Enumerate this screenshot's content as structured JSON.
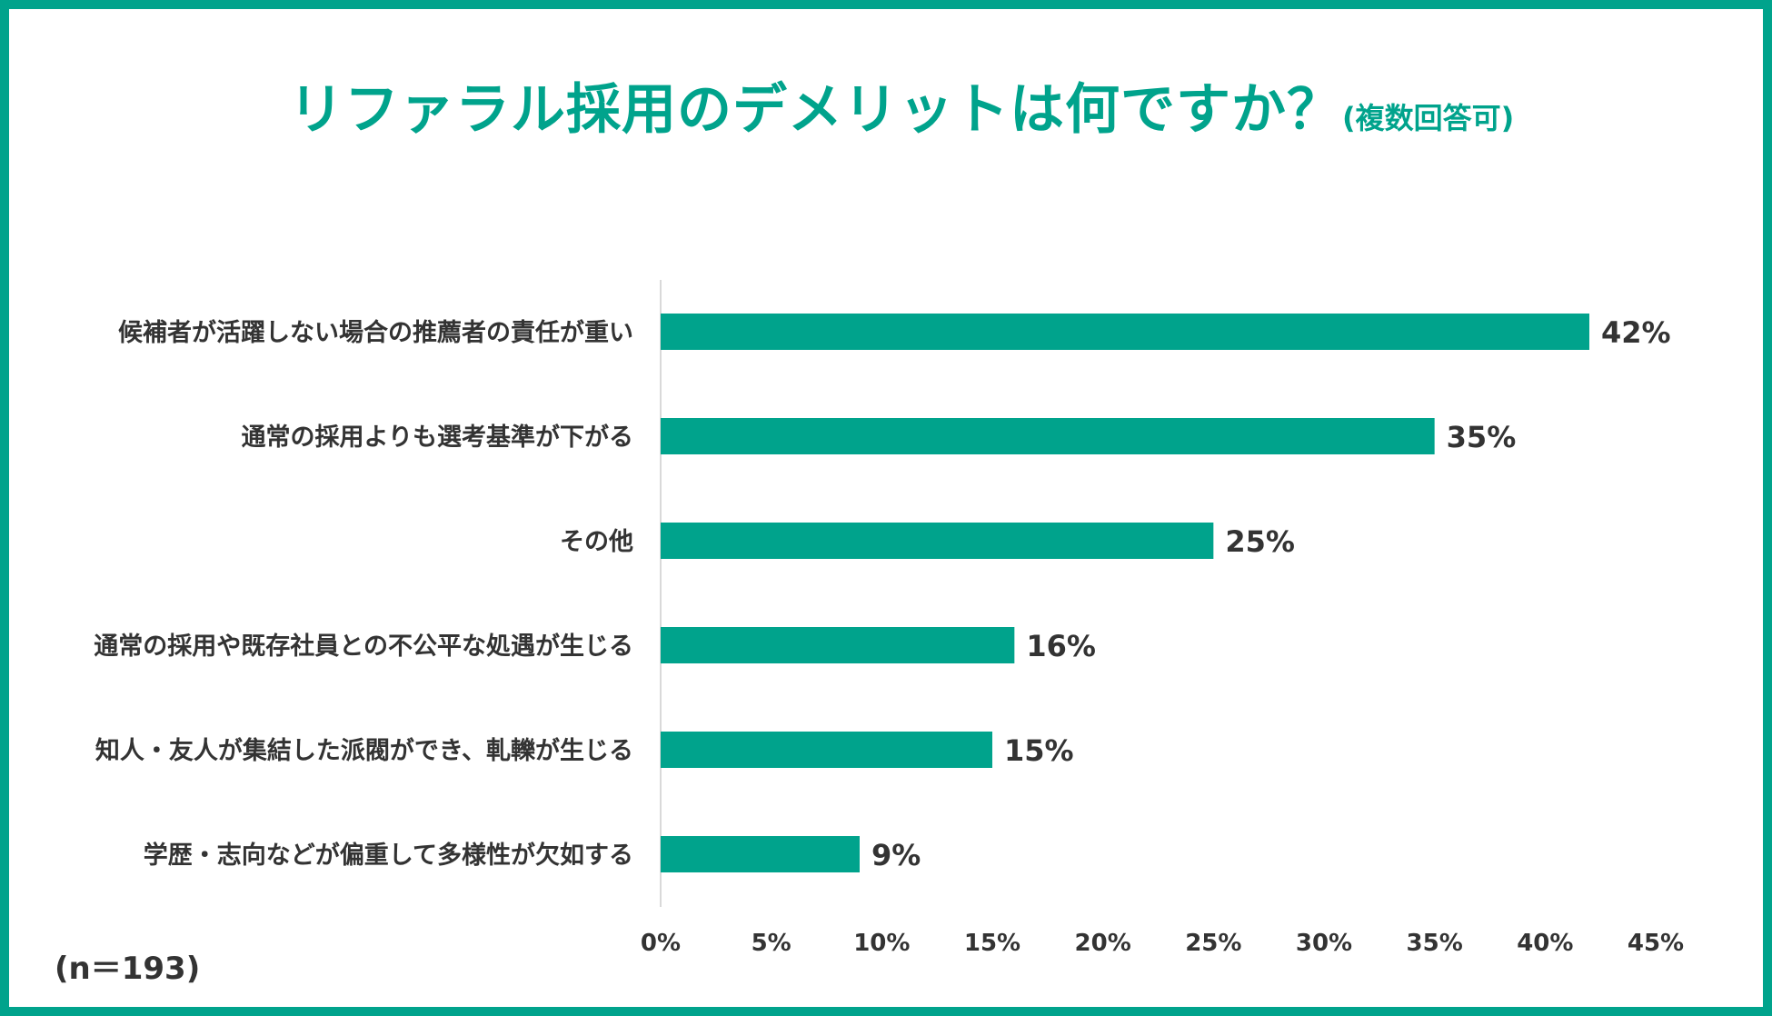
{
  "title": "リファラル採用のデメリットは何ですか？",
  "subtitle": "(複数回答可)",
  "sample_note": "(n＝193)",
  "colors": {
    "accent": "#00a38c",
    "text": "#333333",
    "axis": "#d9d9d9"
  },
  "chart_data": {
    "type": "bar",
    "orientation": "horizontal",
    "categories": [
      "候補者が活躍しない場合の推薦者の責任が重い",
      "通常の採用よりも選考基準が下がる",
      "その他",
      "通常の採用や既存社員との不公平な処遇が生じる",
      "知人・友人が集結した派閥ができ、軋轢が生じる",
      "学歴・志向などが偏重して多様性が欠如する"
    ],
    "values": [
      42,
      35,
      25,
      16,
      15,
      9
    ],
    "value_labels": [
      "42%",
      "35%",
      "25%",
      "16%",
      "15%",
      "9%"
    ],
    "xlim": [
      0,
      45
    ],
    "x_ticks": [
      0,
      5,
      10,
      15,
      20,
      25,
      30,
      35,
      40,
      45
    ],
    "x_tick_labels": [
      "0%",
      "5%",
      "10%",
      "15%",
      "20%",
      "25%",
      "30%",
      "35%",
      "40%",
      "45%"
    ],
    "grid": false,
    "legend": "none"
  }
}
